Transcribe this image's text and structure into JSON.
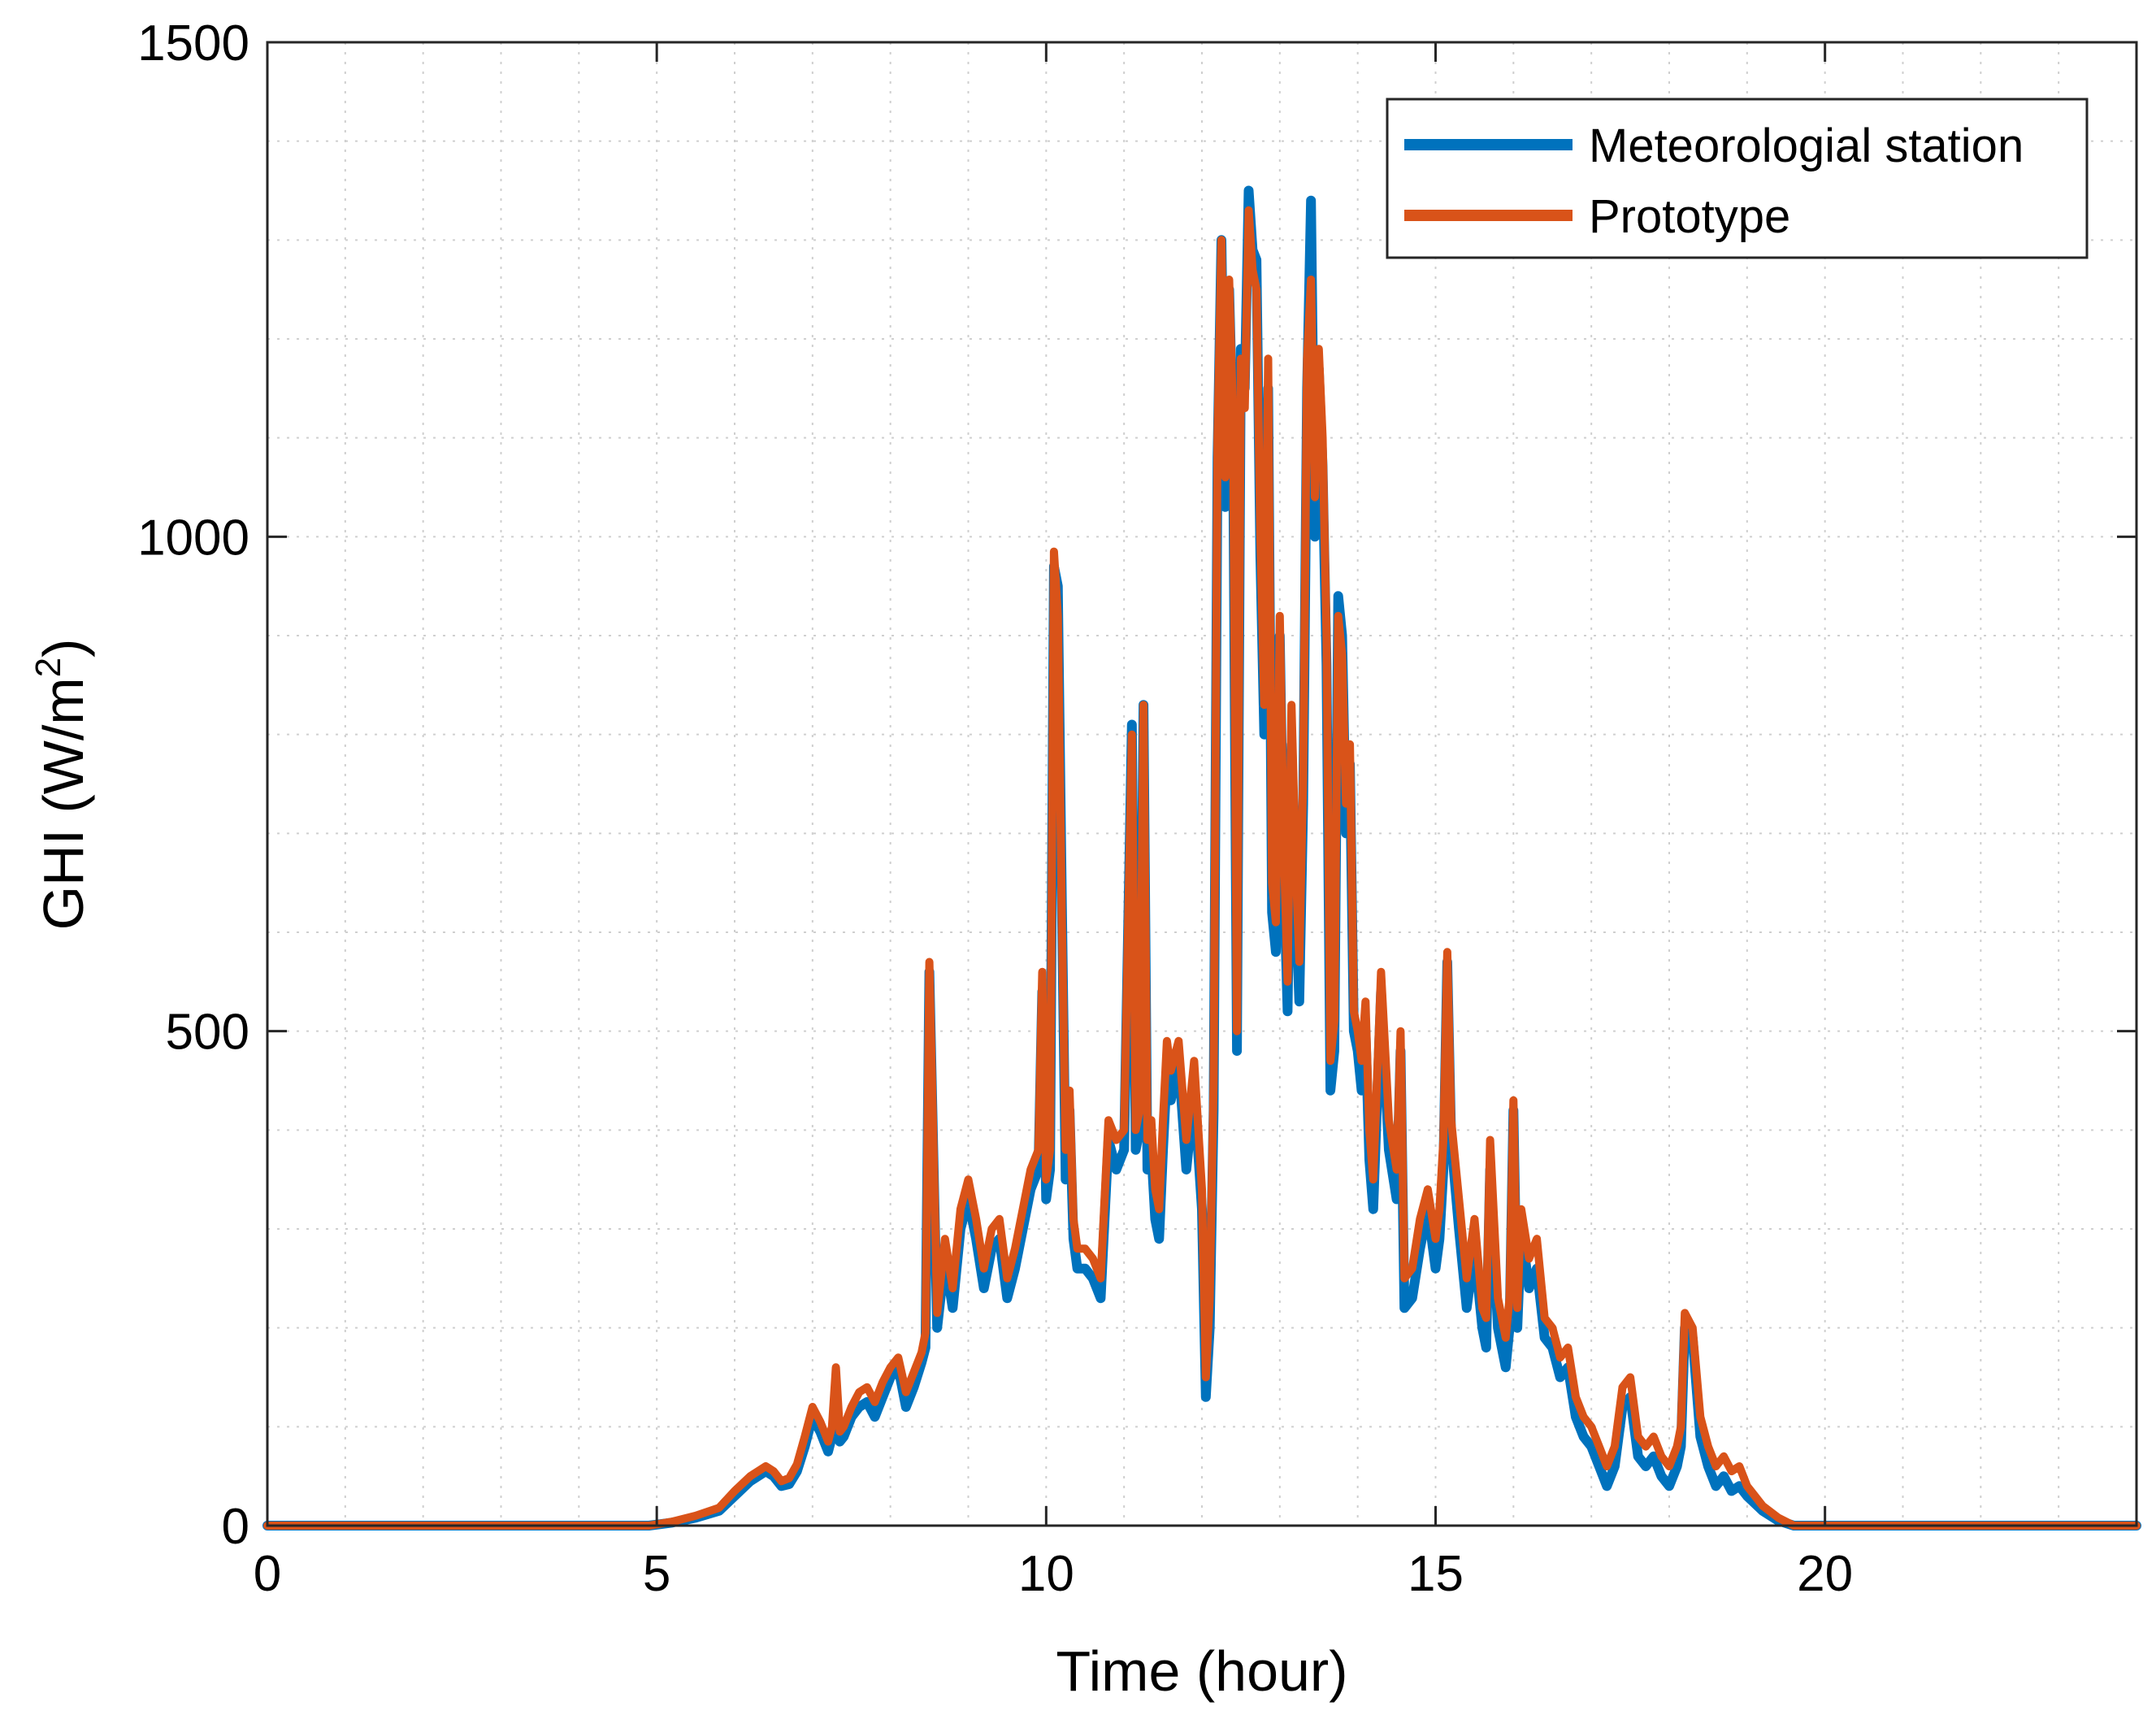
{
  "chart_data": {
    "type": "line",
    "title": "",
    "xlabel": "Time (hour)",
    "ylabel": "GHI (W/m",
    "ylabel_sup": "2",
    "ylabel_tail": ")",
    "xlim": [
      0,
      24
    ],
    "ylim": [
      0,
      1500
    ],
    "xticks": [
      0,
      5,
      10,
      15,
      20
    ],
    "xtick_labels": [
      "0",
      "5",
      "10",
      "15",
      "20"
    ],
    "yticks": [
      0,
      500,
      1000,
      1500
    ],
    "ytick_labels": [
      "0",
      "500",
      "1000",
      "1500"
    ],
    "x_minor_grid_step": 1,
    "y_minor_grid_step": 100,
    "grid": true,
    "legend_position": "top-right",
    "series": [
      {
        "name": "Meteorologial station",
        "color": "#0072BD",
        "x": [
          0,
          4.9,
          5.2,
          5.5,
          5.8,
          6.0,
          6.2,
          6.4,
          6.5,
          6.6,
          6.7,
          6.8,
          6.9,
          7.0,
          7.1,
          7.2,
          7.25,
          7.3,
          7.35,
          7.4,
          7.5,
          7.6,
          7.7,
          7.8,
          7.9,
          8.0,
          8.1,
          8.2,
          8.3,
          8.4,
          8.45,
          8.5,
          8.6,
          8.7,
          8.8,
          8.9,
          9.0,
          9.1,
          9.2,
          9.3,
          9.4,
          9.5,
          9.6,
          9.7,
          9.8,
          9.9,
          9.95,
          10.0,
          10.05,
          10.1,
          10.15,
          10.2,
          10.25,
          10.3,
          10.35,
          10.4,
          10.5,
          10.6,
          10.7,
          10.8,
          10.9,
          11.0,
          11.1,
          11.15,
          11.2,
          11.25,
          11.3,
          11.35,
          11.4,
          11.45,
          11.5,
          11.55,
          11.6,
          11.7,
          11.8,
          11.9,
          12.0,
          12.05,
          12.1,
          12.15,
          12.2,
          12.25,
          12.3,
          12.35,
          12.4,
          12.45,
          12.5,
          12.55,
          12.6,
          12.65,
          12.7,
          12.75,
          12.8,
          12.85,
          12.9,
          12.95,
          13.0,
          13.05,
          13.1,
          13.15,
          13.2,
          13.25,
          13.3,
          13.35,
          13.4,
          13.45,
          13.5,
          13.55,
          13.6,
          13.65,
          13.7,
          13.75,
          13.8,
          13.85,
          13.9,
          13.95,
          14.0,
          14.05,
          14.1,
          14.15,
          14.2,
          14.3,
          14.4,
          14.5,
          14.55,
          14.6,
          14.7,
          14.8,
          14.9,
          15.0,
          15.05,
          15.1,
          15.15,
          15.2,
          15.3,
          15.4,
          15.5,
          15.6,
          15.65,
          15.7,
          15.8,
          15.9,
          15.95,
          16.0,
          16.05,
          16.1,
          16.2,
          16.3,
          16.4,
          16.5,
          16.6,
          16.7,
          16.8,
          16.9,
          17.0,
          17.1,
          17.2,
          17.3,
          17.4,
          17.5,
          17.6,
          17.7,
          17.8,
          17.9,
          18.0,
          18.1,
          18.15,
          18.2,
          18.3,
          18.4,
          18.5,
          18.6,
          18.7,
          18.8,
          18.9,
          19.0,
          19.2,
          19.4,
          19.6,
          20.0,
          24.0
        ],
        "y": [
          0,
          0,
          3,
          8,
          15,
          30,
          45,
          55,
          50,
          40,
          42,
          55,
          80,
          110,
          95,
          75,
          90,
          130,
          85,
          90,
          110,
          120,
          125,
          110,
          130,
          150,
          160,
          120,
          140,
          165,
          180,
          560,
          200,
          270,
          220,
          300,
          330,
          290,
          240,
          280,
          290,
          230,
          260,
          300,
          340,
          360,
          540,
          330,
          360,
          970,
          950,
          640,
          350,
          420,
          290,
          260,
          260,
          250,
          230,
          390,
          360,
          380,
          810,
          380,
          400,
          830,
          360,
          380,
          310,
          290,
          380,
          460,
          430,
          470,
          360,
          440,
          320,
          130,
          200,
          420,
          1080,
          1300,
          1030,
          1250,
          1100,
          480,
          1190,
          1150,
          1350,
          1290,
          1280,
          980,
          800,
          1150,
          620,
          580,
          900,
          660,
          520,
          790,
          640,
          530,
          730,
          1150,
          1340,
          1000,
          1170,
          1070,
          870,
          440,
          480,
          940,
          900,
          700,
          770,
          500,
          480,
          440,
          500,
          370,
          320,
          540,
          380,
          330,
          480,
          220,
          230,
          280,
          320,
          260,
          290,
          360,
          570,
          390,
          300,
          220,
          280,
          200,
          180,
          360,
          200,
          160,
          200,
          420,
          200,
          300,
          240,
          260,
          190,
          180,
          150,
          160,
          110,
          90,
          80,
          60,
          40,
          60,
          120,
          130,
          70,
          60,
          70,
          50,
          40,
          60,
          80,
          200,
          190,
          90,
          60,
          40,
          50,
          35,
          40,
          30,
          15,
          5,
          0,
          0,
          0
        ]
      },
      {
        "name": "Prototype",
        "color": "#D95319",
        "x": [
          0,
          4.9,
          5.2,
          5.5,
          5.8,
          6.0,
          6.2,
          6.4,
          6.5,
          6.6,
          6.7,
          6.8,
          6.9,
          7.0,
          7.1,
          7.2,
          7.25,
          7.3,
          7.35,
          7.4,
          7.5,
          7.6,
          7.7,
          7.8,
          7.9,
          8.0,
          8.1,
          8.2,
          8.3,
          8.4,
          8.45,
          8.5,
          8.6,
          8.7,
          8.8,
          8.9,
          9.0,
          9.1,
          9.2,
          9.3,
          9.4,
          9.5,
          9.6,
          9.7,
          9.8,
          9.9,
          9.95,
          10.0,
          10.05,
          10.1,
          10.15,
          10.2,
          10.25,
          10.3,
          10.35,
          10.4,
          10.5,
          10.6,
          10.7,
          10.8,
          10.9,
          11.0,
          11.1,
          11.15,
          11.2,
          11.25,
          11.3,
          11.35,
          11.4,
          11.45,
          11.5,
          11.55,
          11.6,
          11.7,
          11.8,
          11.9,
          12.0,
          12.05,
          12.1,
          12.15,
          12.2,
          12.25,
          12.3,
          12.35,
          12.4,
          12.45,
          12.5,
          12.55,
          12.6,
          12.65,
          12.7,
          12.75,
          12.8,
          12.85,
          12.9,
          12.95,
          13.0,
          13.05,
          13.1,
          13.15,
          13.2,
          13.25,
          13.3,
          13.35,
          13.4,
          13.45,
          13.5,
          13.55,
          13.6,
          13.65,
          13.7,
          13.75,
          13.8,
          13.85,
          13.9,
          13.95,
          14.0,
          14.05,
          14.1,
          14.15,
          14.2,
          14.3,
          14.4,
          14.5,
          14.55,
          14.6,
          14.7,
          14.8,
          14.9,
          15.0,
          15.05,
          15.1,
          15.15,
          15.2,
          15.3,
          15.4,
          15.5,
          15.6,
          15.65,
          15.7,
          15.8,
          15.9,
          15.95,
          16.0,
          16.05,
          16.1,
          16.2,
          16.3,
          16.4,
          16.5,
          16.6,
          16.7,
          16.8,
          16.9,
          17.0,
          17.1,
          17.2,
          17.3,
          17.4,
          17.5,
          17.6,
          17.7,
          17.8,
          17.9,
          18.0,
          18.1,
          18.15,
          18.2,
          18.3,
          18.4,
          18.5,
          18.6,
          18.7,
          18.8,
          18.9,
          19.0,
          19.2,
          19.4,
          19.6,
          20.0,
          24.0
        ],
        "y": [
          0,
          0,
          4,
          10,
          18,
          35,
          50,
          60,
          55,
          45,
          48,
          62,
          90,
          120,
          105,
          85,
          100,
          160,
          95,
          100,
          120,
          135,
          140,
          125,
          145,
          160,
          170,
          135,
          155,
          175,
          195,
          570,
          215,
          290,
          240,
          320,
          350,
          310,
          260,
          300,
          310,
          250,
          280,
          320,
          360,
          380,
          560,
          350,
          380,
          985,
          920,
          620,
          380,
          440,
          310,
          280,
          280,
          270,
          250,
          410,
          390,
          400,
          800,
          400,
          420,
          830,
          390,
          410,
          340,
          320,
          410,
          490,
          460,
          490,
          390,
          470,
          340,
          150,
          230,
          450,
          1100,
          1300,
          1060,
          1260,
          1120,
          500,
          1180,
          1130,
          1330,
          1270,
          1250,
          1000,
          830,
          1180,
          650,
          610,
          920,
          690,
          550,
          830,
          680,
          570,
          760,
          1180,
          1260,
          1040,
          1190,
          1100,
          900,
          470,
          510,
          920,
          880,
          730,
          790,
          520,
          500,
          470,
          530,
          400,
          350,
          560,
          410,
          360,
          500,
          250,
          260,
          310,
          340,
          290,
          320,
          390,
          580,
          410,
          330,
          250,
          310,
          220,
          210,
          390,
          230,
          190,
          230,
          430,
          220,
          320,
          270,
          290,
          210,
          200,
          170,
          180,
          130,
          110,
          100,
          80,
          60,
          80,
          140,
          150,
          90,
          80,
          90,
          70,
          60,
          80,
          100,
          215,
          200,
          110,
          80,
          60,
          70,
          55,
          60,
          40,
          20,
          8,
          0,
          0,
          0
        ]
      }
    ]
  }
}
